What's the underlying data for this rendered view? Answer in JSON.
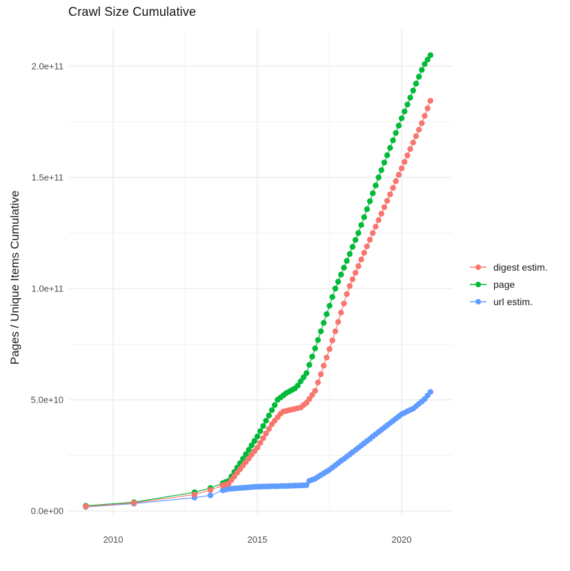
{
  "chart_data": {
    "type": "scatter",
    "title": "Crawl Size Cumulative",
    "xlabel": "",
    "ylabel": "Pages / Unique Items Cumulative",
    "value_unit": "items, stored in billions (1e9)",
    "grid": "major and minor, light gray on white background",
    "legend_position": "right-center",
    "x_axis": {
      "range": [
        2008.4,
        2021.7
      ],
      "major_ticks": [
        2010,
        2015,
        2020
      ],
      "tick_labels": [
        "2010",
        "2015",
        "2020"
      ],
      "minor_ticks": [
        2012.5,
        2017.5
      ]
    },
    "y_axis": {
      "range_e9": [
        -2,
        219
      ],
      "major_ticks_e9": [
        0,
        50,
        100,
        150,
        200
      ],
      "tick_labels": [
        "0.0e+00",
        "5.0e+10",
        "1.0e+11",
        "1.5e+11",
        "2.0e+11"
      ],
      "minor_ticks_e9": [
        25,
        75,
        125,
        175
      ]
    },
    "style": {
      "grid_major_color": "#e3e3e3",
      "grid_minor_color": "#f0f0f0",
      "tick_label_color": "#4d4d4d",
      "title_color": "#141414",
      "point_radius": 4.2
    },
    "draw_order": [
      "page",
      "url estim.",
      "digest estim."
    ],
    "series": [
      {
        "name": "digest estim.",
        "color": "#F8766D",
        "early_points": [
          [
            2009.05,
            2.0
          ],
          [
            2010.72,
            3.6
          ],
          [
            2012.82,
            7.4
          ],
          [
            2013.37,
            9.4
          ]
        ],
        "dense": {
          "start_year": 2013.8,
          "step_years": 0.1,
          "values_e9": [
            11.5,
            11.9,
            12.3,
            13.9,
            15.5,
            17.2,
            18.8,
            20.4,
            22.0,
            23.6,
            25.3,
            26.9,
            28.5,
            30.6,
            32.7,
            34.8,
            36.9,
            39.0,
            40.6,
            42.1,
            43.7,
            44.7,
            45.0,
            45.3,
            45.6,
            45.9,
            46.2,
            46.5,
            47.6,
            48.6,
            50.3,
            52.1,
            54.0,
            57.8,
            61.5,
            65.3,
            69.0,
            72.8,
            76.7,
            80.8,
            85.0,
            89.2,
            93.3,
            97.5,
            101.2,
            104.2,
            107.1,
            110.1,
            113.1,
            116.1,
            119.0,
            122.0,
            125.0,
            127.9,
            130.8,
            133.7,
            136.6,
            139.5,
            142.4,
            145.3,
            148.3,
            151.2,
            154.1,
            157.0,
            159.9,
            162.8,
            165.7,
            168.6,
            171.5,
            174.4,
            177.7,
            181.1,
            184.5
          ]
        }
      },
      {
        "name": "page",
        "color": "#00BA38",
        "early_points": [
          [
            2009.05,
            2.3
          ],
          [
            2010.72,
            3.9
          ],
          [
            2012.82,
            8.4
          ],
          [
            2013.37,
            10.3
          ]
        ],
        "dense": {
          "start_year": 2013.8,
          "step_years": 0.1,
          "values_e9": [
            12.5,
            13.0,
            13.5,
            15.5,
            17.5,
            19.5,
            21.5,
            23.5,
            25.5,
            27.5,
            29.5,
            31.5,
            33.5,
            35.9,
            38.2,
            40.6,
            42.9,
            45.3,
            47.6,
            50.0,
            51.0,
            52.0,
            53.0,
            53.7,
            54.4,
            55.1,
            56.4,
            58.3,
            60.1,
            62.0,
            65.7,
            69.4,
            73.1,
            76.9,
            80.8,
            84.6,
            88.5,
            92.3,
            96.2,
            100.0,
            103.1,
            106.3,
            109.4,
            112.5,
            115.6,
            118.8,
            121.9,
            125.0,
            128.6,
            132.1,
            135.7,
            139.3,
            142.9,
            146.4,
            150.0,
            153.3,
            156.7,
            160.0,
            163.3,
            166.7,
            170.0,
            173.3,
            176.6,
            179.7,
            182.8,
            185.9,
            189.1,
            192.2,
            195.3,
            198.4,
            201.0,
            203.0,
            205.0
          ]
        }
      },
      {
        "name": "url estim.",
        "color": "#619CFF",
        "early_points": [
          [
            2009.05,
            1.8
          ],
          [
            2010.72,
            3.3
          ],
          [
            2012.82,
            6.0
          ],
          [
            2013.37,
            7.0
          ]
        ],
        "dense": {
          "start_year": 2013.8,
          "step_years": 0.1,
          "values_e9": [
            9.3,
            9.6,
            9.9,
            10.0,
            10.1,
            10.2,
            10.3,
            10.4,
            10.5,
            10.6,
            10.7,
            10.8,
            10.9,
            10.9,
            11.0,
            11.0,
            11.0,
            11.1,
            11.1,
            11.1,
            11.2,
            11.2,
            11.2,
            11.3,
            11.3,
            11.4,
            11.4,
            11.5,
            11.5,
            11.6,
            13.5,
            14.0,
            14.5,
            15.3,
            16.1,
            16.9,
            17.7,
            18.5,
            19.5,
            20.5,
            21.5,
            22.5,
            23.4,
            24.4,
            25.4,
            26.4,
            27.4,
            28.4,
            29.4,
            30.4,
            31.4,
            32.4,
            33.5,
            34.5,
            35.5,
            36.5,
            37.5,
            38.5,
            39.5,
            40.5,
            41.5,
            42.5,
            43.5,
            44.1,
            44.8,
            45.4,
            46.0,
            47.1,
            48.2,
            49.2,
            50.3,
            51.9,
            53.5
          ]
        }
      }
    ],
    "legend": [
      "digest estim.",
      "page",
      "url estim."
    ]
  }
}
